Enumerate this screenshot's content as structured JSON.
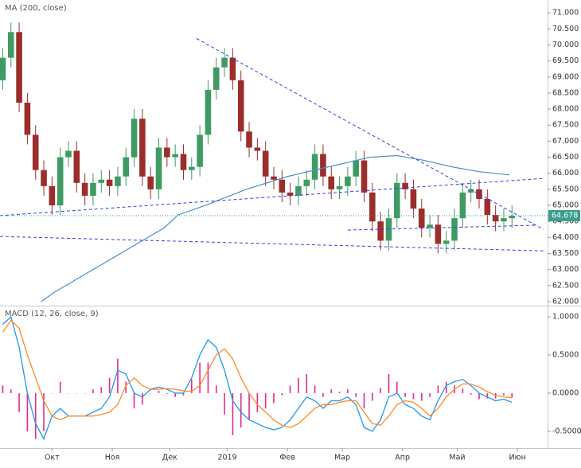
{
  "chart_data": [
    {
      "type": "candlestick",
      "title": "MA (200, close)",
      "x": [
        1,
        4,
        7,
        10,
        13,
        16,
        19,
        22,
        25,
        28,
        31,
        34,
        37,
        40,
        43,
        46,
        49,
        52,
        55,
        58,
        61,
        64,
        67,
        70,
        73,
        76,
        79,
        82,
        85,
        88,
        91,
        94,
        97,
        100,
        103,
        106,
        109,
        112,
        115,
        118,
        121,
        124,
        127,
        130,
        133,
        136,
        139,
        142,
        145,
        148,
        151,
        154,
        157,
        160,
        163,
        166,
        169,
        172,
        175,
        178,
        181,
        184,
        187
      ],
      "open": [
        68.9,
        69.6,
        70.4,
        68.2,
        67.2,
        66.1,
        65.6,
        65.0,
        66.5,
        66.7,
        65.7,
        65.3,
        65.7,
        65.8,
        65.6,
        65.9,
        66.5,
        67.7,
        65.9,
        65.5,
        66.8,
        66.5,
        66.6,
        66.1,
        66.2,
        67.2,
        68.6,
        69.3,
        69.6,
        68.9,
        67.3,
        66.8,
        66.7,
        65.9,
        65.8,
        65.4,
        65.3,
        65.6,
        65.8,
        66.6,
        65.9,
        65.5,
        65.6,
        65.9,
        66.4,
        65.4,
        64.5,
        63.9,
        64.6,
        65.7,
        65.5,
        64.9,
        64.3,
        64.4,
        63.8,
        63.9,
        64.6,
        65.4,
        65.5,
        65.2,
        64.7,
        64.5,
        64.6
      ],
      "high": [
        69.9,
        70.7,
        70.7,
        68.5,
        67.5,
        66.4,
        65.9,
        66.8,
        67.0,
        67.0,
        66.0,
        66.0,
        66.1,
        66.1,
        66.2,
        66.8,
        68.0,
        68.0,
        66.2,
        67.1,
        67.1,
        66.9,
        66.9,
        66.5,
        67.5,
        68.9,
        69.6,
        69.9,
        69.9,
        69.2,
        67.6,
        67.1,
        67.0,
        66.2,
        66.1,
        65.7,
        65.9,
        66.1,
        66.9,
        66.9,
        66.2,
        65.9,
        66.2,
        66.7,
        66.7,
        65.7,
        64.8,
        64.9,
        66.0,
        66.0,
        65.8,
        65.2,
        64.7,
        64.7,
        64.2,
        64.9,
        65.7,
        65.8,
        65.8,
        65.5,
        65.0,
        64.9,
        65.0
      ],
      "low": [
        68.6,
        69.3,
        67.9,
        66.9,
        65.8,
        65.3,
        64.7,
        64.7,
        66.2,
        65.4,
        65.0,
        65.0,
        65.4,
        65.3,
        65.3,
        65.6,
        66.2,
        65.6,
        65.2,
        65.2,
        66.2,
        66.2,
        65.8,
        65.8,
        65.9,
        66.9,
        68.3,
        69.0,
        68.6,
        67.0,
        66.5,
        66.4,
        65.6,
        65.5,
        65.1,
        65.0,
        65.0,
        65.3,
        65.5,
        65.6,
        65.2,
        65.2,
        65.3,
        65.6,
        65.1,
        64.2,
        63.6,
        63.6,
        64.3,
        65.2,
        64.6,
        64.0,
        64.0,
        63.5,
        63.5,
        63.6,
        64.3,
        65.1,
        64.9,
        64.4,
        64.2,
        64.2,
        64.3
      ],
      "close": [
        69.6,
        70.4,
        68.2,
        67.2,
        66.1,
        65.6,
        65.0,
        66.5,
        66.7,
        65.7,
        65.3,
        65.7,
        65.8,
        65.6,
        65.9,
        66.5,
        67.7,
        65.9,
        65.5,
        66.8,
        66.5,
        66.6,
        66.1,
        66.2,
        67.2,
        68.6,
        69.3,
        69.6,
        68.9,
        67.3,
        66.8,
        66.7,
        65.9,
        65.8,
        65.4,
        65.3,
        65.6,
        65.8,
        66.6,
        65.9,
        65.5,
        65.6,
        65.9,
        66.4,
        65.4,
        64.5,
        63.9,
        64.6,
        65.7,
        65.5,
        64.9,
        64.3,
        64.4,
        63.8,
        63.9,
        64.6,
        65.4,
        65.5,
        65.2,
        64.7,
        64.5,
        64.6,
        64.678
      ],
      "up_color": "#3f9b63",
      "down_color": "#9b2d2a",
      "overlay": {
        "color": "#4d8fc9",
        "x": [
          15,
          20,
          30,
          40,
          50,
          60,
          65,
          75,
          90,
          105,
          120,
          135,
          145,
          155,
          165,
          175,
          186
        ],
        "values": [
          62.0,
          62.3,
          62.8,
          63.3,
          63.8,
          64.3,
          64.7,
          65.0,
          65.5,
          65.9,
          66.2,
          66.5,
          66.55,
          66.4,
          66.2,
          66.05,
          65.95
        ]
      },
      "trend_color": "#3d3de0",
      "trend_lines": [
        {
          "x": [
            71.8,
            198.5
          ],
          "y": [
            70.2,
            64.25
          ]
        },
        {
          "x": [
            0,
            198.5
          ],
          "y": [
            64.68,
            65.84
          ]
        },
        {
          "x": [
            0,
            198.5
          ],
          "y": [
            64.03,
            63.58
          ]
        },
        {
          "x": [
            127,
            195.3
          ],
          "y": [
            64.23,
            64.38
          ]
        }
      ],
      "last_price": 64.678,
      "last_price_color": "#3a9e8c",
      "xlim": [
        0,
        200
      ],
      "ylim": [
        61.9,
        71.4
      ],
      "yticks": [
        {
          "value": 62,
          "label": "62.000"
        },
        {
          "value": 62.5,
          "label": "62.500"
        },
        {
          "value": 63,
          "label": "63.000"
        },
        {
          "value": 63.5,
          "label": "63.500"
        },
        {
          "value": 64,
          "label": "64.000"
        },
        {
          "value": 64.5,
          "label": "64.500"
        },
        {
          "value": 65,
          "label": "65.000"
        },
        {
          "value": 65.5,
          "label": "65.500"
        },
        {
          "value": 66,
          "label": "66.000"
        },
        {
          "value": 66.5,
          "label": "66.500"
        },
        {
          "value": 67,
          "label": "67.000"
        },
        {
          "value": 67.5,
          "label": "67.500"
        },
        {
          "value": 68,
          "label": "68.000"
        },
        {
          "value": 68.5,
          "label": "68.500"
        },
        {
          "value": 69,
          "label": "69.000"
        },
        {
          "value": 69.5,
          "label": "69.500"
        },
        {
          "value": 70,
          "label": "70.000"
        },
        {
          "value": 70.5,
          "label": "70.500"
        },
        {
          "value": 71,
          "label": "71.000"
        }
      ]
    },
    {
      "type": "macd",
      "title": "MACD (12, 26, close, 9)",
      "x": [
        1,
        4,
        7,
        10,
        13,
        16,
        19,
        22,
        25,
        28,
        31,
        34,
        37,
        40,
        43,
        46,
        49,
        52,
        55,
        58,
        61,
        64,
        67,
        70,
        73,
        76,
        79,
        82,
        85,
        88,
        91,
        94,
        97,
        100,
        103,
        106,
        109,
        112,
        115,
        118,
        121,
        124,
        127,
        130,
        133,
        136,
        139,
        142,
        145,
        148,
        151,
        154,
        157,
        160,
        163,
        166,
        169,
        172,
        175,
        178,
        181,
        184,
        187
      ],
      "series": [
        {
          "color": "#2196f3",
          "values": [
            0.9,
            1.0,
            0.6,
            0.0,
            -0.4,
            -0.6,
            -0.3,
            -0.2,
            -0.3,
            -0.3,
            -0.3,
            -0.25,
            -0.2,
            -0.05,
            0.3,
            0.25,
            0.0,
            -0.05,
            0.05,
            0.08,
            0.05,
            0.0,
            0.0,
            0.2,
            0.5,
            0.7,
            0.6,
            0.3,
            -0.1,
            -0.25,
            -0.35,
            -0.4,
            -0.45,
            -0.48,
            -0.45,
            -0.35,
            -0.2,
            -0.05,
            -0.1,
            -0.2,
            -0.1,
            -0.1,
            -0.05,
            -0.15,
            -0.45,
            -0.5,
            -0.35,
            -0.05,
            0.0,
            -0.15,
            -0.2,
            -0.3,
            -0.35,
            -0.1,
            0.1,
            0.15,
            0.18,
            0.1,
            0.0,
            -0.05,
            -0.1,
            -0.08,
            -0.12
          ]
        },
        {
          "color": "#ff8a2b",
          "values": [
            0.8,
            0.95,
            0.85,
            0.5,
            0.2,
            -0.1,
            -0.3,
            -0.35,
            -0.3,
            -0.3,
            -0.3,
            -0.3,
            -0.28,
            -0.25,
            -0.15,
            0.1,
            0.2,
            0.1,
            0.05,
            0.05,
            0.06,
            0.05,
            0.03,
            0.02,
            0.1,
            0.3,
            0.5,
            0.58,
            0.45,
            0.2,
            0.0,
            -0.15,
            -0.25,
            -0.35,
            -0.42,
            -0.45,
            -0.4,
            -0.3,
            -0.2,
            -0.15,
            -0.15,
            -0.12,
            -0.1,
            -0.1,
            -0.25,
            -0.4,
            -0.42,
            -0.3,
            -0.15,
            -0.1,
            -0.12,
            -0.2,
            -0.3,
            -0.2,
            -0.05,
            0.05,
            0.12,
            0.12,
            0.08,
            0.02,
            -0.03,
            -0.05,
            -0.06
          ]
        }
      ],
      "histogram": {
        "color": "#e5288f",
        "values": [
          0.1,
          0.05,
          -0.25,
          -0.5,
          -0.6,
          -0.5,
          0.0,
          0.15,
          0.0,
          0.0,
          0.0,
          0.05,
          0.08,
          0.2,
          0.45,
          0.15,
          -0.2,
          -0.15,
          0.0,
          0.03,
          -0.01,
          -0.05,
          -0.03,
          0.18,
          0.4,
          0.4,
          0.1,
          -0.28,
          -0.55,
          -0.45,
          -0.35,
          -0.25,
          -0.2,
          -0.13,
          -0.03,
          0.1,
          0.2,
          0.25,
          0.1,
          -0.05,
          0.05,
          0.02,
          0.05,
          -0.05,
          -0.2,
          -0.1,
          0.07,
          0.25,
          0.15,
          -0.05,
          -0.08,
          -0.1,
          -0.05,
          0.1,
          0.15,
          0.1,
          0.06,
          -0.02,
          -0.08,
          -0.07,
          -0.07,
          -0.03,
          -0.06
        ]
      },
      "xlim": [
        0,
        200
      ],
      "ylim": [
        -0.72,
        1.125
      ],
      "yticks": [
        {
          "value": -0.5,
          "label": "-0.5000"
        },
        {
          "value": 0,
          "label": "0.0000"
        },
        {
          "value": 0.5,
          "label": "0.5000"
        },
        {
          "value": 1,
          "label": "1.0000"
        }
      ],
      "xticks": [
        {
          "value": 19,
          "label": "Окт"
        },
        {
          "value": 41,
          "label": "Ноя"
        },
        {
          "value": 62,
          "label": "Дек"
        },
        {
          "value": 83,
          "label": "2019"
        },
        {
          "value": 105,
          "label": "Фев"
        },
        {
          "value": 125,
          "label": "Мар"
        },
        {
          "value": 147,
          "label": "Апр"
        },
        {
          "value": 167,
          "label": "Май"
        },
        {
          "value": 189,
          "label": "Июн"
        }
      ]
    }
  ]
}
